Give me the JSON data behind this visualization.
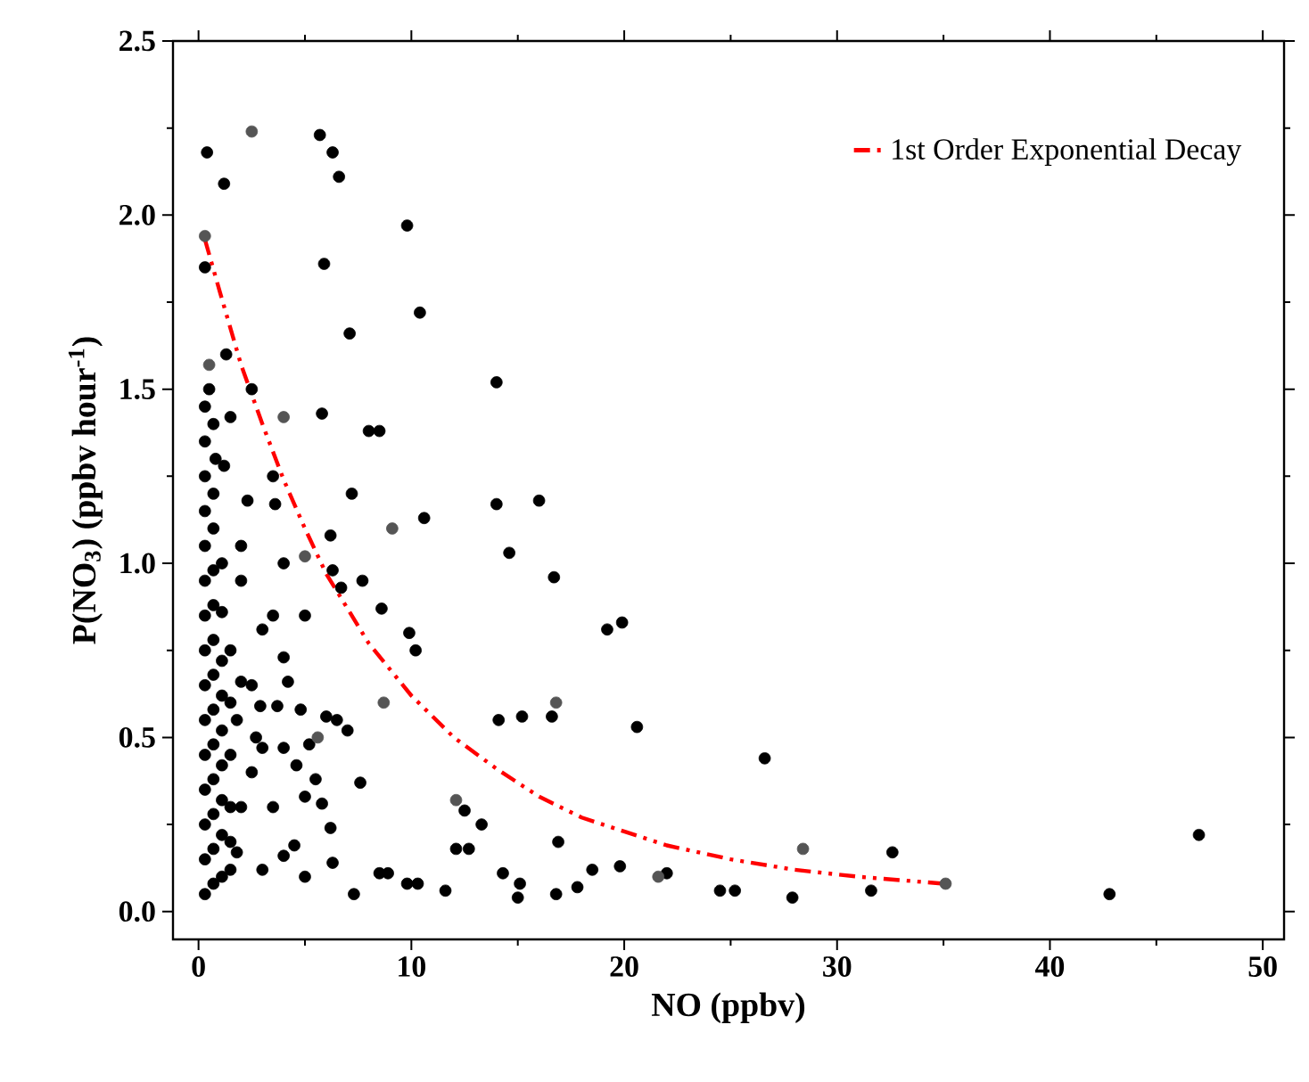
{
  "chart_data": {
    "type": "scatter",
    "xlabel": "NO (ppbv)",
    "ylabel": "P(NO$_{3}$) (ppbv hour$^{-1}$)",
    "xlim": [
      -1.2,
      51
    ],
    "ylim": [
      -0.08,
      2.5
    ],
    "xticks": [
      0,
      10,
      20,
      30,
      40,
      50
    ],
    "yticks": [
      {
        "value": 0,
        "label": "0.0"
      },
      {
        "value": 0.5,
        "label": "0.5"
      },
      {
        "value": 1,
        "label": "1.0"
      },
      {
        "value": 1.5,
        "label": "1.5"
      },
      {
        "value": 2,
        "label": "2.0"
      },
      {
        "value": 2.5,
        "label": "2.5"
      }
    ],
    "marker": "circle",
    "legend": "top right",
    "series": [
      {
        "color": "#000000",
        "x": [
          0.4,
          1.2,
          5.7,
          6.3,
          6.6,
          0.3,
          5.9,
          9.8,
          10.4,
          7.1,
          2.5,
          5.8,
          8.0,
          8.5,
          14.0,
          16.0,
          14.0,
          10.6,
          14.6,
          6.2,
          7.2,
          6.3,
          7.7,
          16.7,
          19.2,
          19.9,
          9.9,
          10.2,
          8.6,
          20.6,
          12.5,
          16.6,
          15.2,
          14.1,
          13.3,
          12.1,
          12.7,
          14.3,
          15.1,
          15.0,
          16.9,
          16.8,
          17.8,
          18.5,
          19.8,
          22.0,
          24.5,
          25.2,
          26.6,
          27.9,
          31.6,
          32.6,
          42.8,
          47.0,
          9.8,
          10.3,
          11.6,
          8.5,
          8.9,
          7.3,
          6.3,
          5.0,
          4.5,
          4.0,
          3.0,
          1.8,
          2.0,
          2.5,
          4.0,
          4.2,
          3.0,
          3.5,
          2.9,
          3.7,
          4.8,
          5.2,
          6.0,
          6.5,
          7.0,
          7.6,
          5.5,
          5.8,
          6.2,
          3.5,
          4.0,
          3.0,
          2.5,
          2.0,
          1.5,
          2.7,
          6.7,
          1.2,
          1.5,
          2.0,
          3.5,
          2.3,
          3.6,
          4.0,
          5.0,
          2.0,
          1.3,
          0.5,
          0.8,
          4.6,
          5.0,
          1.8,
          1.5,
          0.3,
          0.3,
          0.3,
          0.3,
          0.3,
          0.3,
          0.3,
          0.3,
          0.3,
          0.3,
          0.3,
          0.3,
          0.3,
          0.3,
          0.3,
          0.7,
          0.7,
          0.7,
          0.7,
          0.7,
          0.7,
          0.7,
          0.7,
          0.7,
          0.7,
          0.7,
          0.7,
          0.7,
          1.1,
          1.1,
          1.1,
          1.1,
          1.1,
          1.1,
          1.1,
          1.1,
          1.1,
          1.5,
          1.5,
          1.5,
          1.5
        ],
        "values": [
          2.18,
          2.09,
          2.23,
          2.18,
          2.11,
          1.85,
          1.86,
          1.97,
          1.72,
          1.66,
          1.5,
          1.43,
          1.38,
          1.38,
          1.52,
          1.18,
          1.17,
          1.13,
          1.03,
          1.08,
          1.2,
          0.98,
          0.95,
          0.96,
          0.81,
          0.83,
          0.8,
          0.75,
          0.87,
          0.53,
          0.29,
          0.56,
          0.56,
          0.55,
          0.25,
          0.18,
          0.18,
          0.11,
          0.08,
          0.04,
          0.2,
          0.05,
          0.07,
          0.12,
          0.13,
          0.11,
          0.06,
          0.06,
          0.44,
          0.04,
          0.06,
          0.17,
          0.05,
          0.22,
          0.08,
          0.08,
          0.06,
          0.11,
          0.11,
          0.05,
          0.14,
          0.1,
          0.19,
          0.16,
          0.12,
          0.17,
          0.66,
          0.65,
          0.73,
          0.66,
          0.81,
          0.85,
          0.59,
          0.59,
          0.58,
          0.48,
          0.56,
          0.55,
          0.52,
          0.37,
          0.38,
          0.31,
          0.24,
          0.3,
          0.47,
          0.47,
          0.4,
          0.3,
          0.2,
          0.5,
          0.93,
          1.28,
          1.42,
          1.05,
          1.25,
          1.18,
          1.17,
          1.0,
          0.85,
          0.95,
          1.6,
          1.5,
          1.3,
          0.42,
          0.33,
          0.55,
          0.75,
          0.05,
          0.15,
          0.25,
          0.35,
          0.45,
          0.55,
          0.65,
          0.75,
          0.85,
          0.95,
          1.05,
          1.15,
          1.25,
          1.35,
          1.45,
          0.08,
          0.18,
          0.28,
          0.38,
          0.48,
          0.58,
          0.68,
          0.78,
          0.88,
          0.98,
          1.1,
          1.2,
          1.4,
          0.1,
          0.22,
          0.32,
          0.42,
          0.52,
          0.62,
          0.72,
          0.86,
          1.0,
          0.12,
          0.3,
          0.45,
          0.6
        ]
      },
      {
        "color": "#555555",
        "x": [
          2.5,
          0.3,
          4.0,
          9.1,
          5.0,
          0.5,
          12.1,
          16.8,
          8.7,
          21.6,
          28.4,
          35.1,
          5.6
        ],
        "values": [
          2.24,
          1.94,
          1.42,
          1.1,
          1.02,
          1.57,
          0.32,
          0.6,
          0.6,
          0.1,
          0.18,
          0.08,
          0.5
        ]
      },
      {
        "type": "line",
        "name": "1st Order Exponential Decay",
        "color": "#ff0000",
        "line_style": "dashdotdotted",
        "marker": "none",
        "x": [
          0.3,
          1,
          2,
          3,
          4,
          5,
          6,
          8,
          10,
          12,
          14,
          16,
          18,
          20,
          22,
          25,
          28,
          31,
          35
        ],
        "values": [
          1.93,
          1.78,
          1.57,
          1.4,
          1.24,
          1.1,
          0.97,
          0.77,
          0.62,
          0.5,
          0.41,
          0.33,
          0.27,
          0.23,
          0.19,
          0.15,
          0.12,
          0.1,
          0.08
        ]
      }
    ]
  }
}
